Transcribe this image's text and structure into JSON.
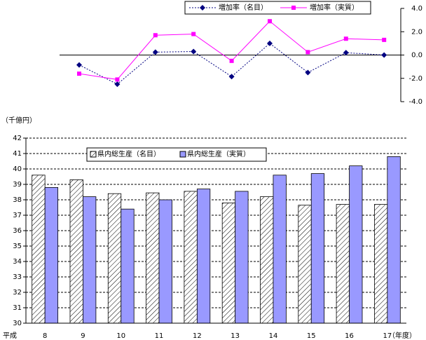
{
  "chart_data": [
    {
      "type": "line",
      "series": [
        {
          "name": "増加率（名目）",
          "color": "#000080",
          "marker": "diamond",
          "dash": "2,2",
          "values": [
            -0.85,
            -2.5,
            0.25,
            0.3,
            -1.85,
            1.0,
            -1.5,
            0.2,
            0.0
          ]
        },
        {
          "name": "増加率（実質）",
          "color": "#ff00ff",
          "marker": "square",
          "values": [
            -1.6,
            -2.1,
            1.7,
            1.8,
            -0.5,
            2.9,
            0.25,
            1.4,
            1.3
          ]
        }
      ],
      "ylim": [
        -4,
        4
      ],
      "yticks": [
        {
          "value": 4,
          "label": "4.0"
        },
        {
          "value": 2,
          "label": "2.0"
        },
        {
          "value": 0,
          "label": "0.0"
        },
        {
          "value": -2,
          "label": "-2.0"
        },
        {
          "value": -4,
          "label": "-4.0"
        }
      ]
    },
    {
      "type": "bar",
      "y_label": "（千億円）",
      "x_prefix": "平成",
      "x_suffix": "（年度）",
      "categories": [
        "8",
        "9",
        "10",
        "11",
        "12",
        "13",
        "14",
        "15",
        "16",
        "17"
      ],
      "series": [
        {
          "name": "県内総生産（名目）",
          "color": "#ffffff",
          "pattern": "hatch",
          "values": [
            39.6,
            39.3,
            38.4,
            38.45,
            38.55,
            37.8,
            38.2,
            37.65,
            37.7,
            37.7
          ]
        },
        {
          "name": "県内総生産（実質）",
          "color": "#9999ff",
          "values": [
            38.8,
            38.2,
            37.4,
            38.0,
            38.7,
            38.55,
            39.6,
            39.7,
            40.2,
            40.8
          ]
        }
      ],
      "ylim": [
        30,
        42
      ],
      "yticks": [
        30,
        31,
        32,
        33,
        34,
        35,
        36,
        37,
        38,
        39,
        40,
        41,
        42
      ],
      "grid": true
    }
  ]
}
